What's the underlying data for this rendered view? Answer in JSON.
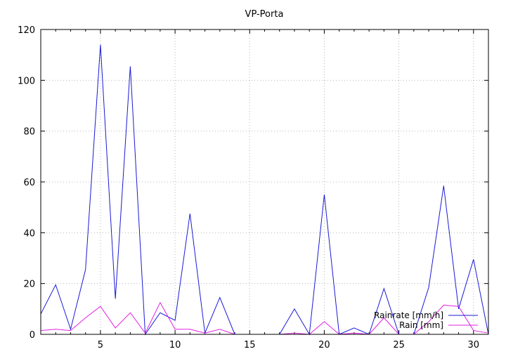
{
  "chart_data": {
    "type": "line",
    "title": "VP-Porta",
    "xlabel": "",
    "ylabel": "",
    "xlim": [
      1,
      31
    ],
    "ylim": [
      0,
      120
    ],
    "xticks": [
      5,
      10,
      15,
      20,
      25,
      30
    ],
    "yticks": [
      0,
      20,
      40,
      60,
      80,
      100,
      120
    ],
    "grid": true,
    "legend_position": "bottom-right",
    "x": [
      1,
      2,
      3,
      4,
      5,
      6,
      7,
      8,
      9,
      10,
      11,
      12,
      13,
      14,
      15,
      16,
      17,
      18,
      19,
      20,
      21,
      22,
      23,
      24,
      25,
      26,
      27,
      28,
      29,
      30,
      31
    ],
    "series": [
      {
        "name": "Rainrate [mm/h]",
        "color": "#1a1ad6",
        "values": [
          8,
          19.5,
          2,
          25.5,
          114,
          14,
          105.5,
          0,
          8.5,
          5.5,
          47.5,
          0.5,
          14.5,
          0,
          0,
          0,
          0,
          10,
          0,
          55,
          0,
          2.5,
          0,
          18,
          0,
          0,
          18.5,
          58.5,
          10,
          29.5,
          0
        ]
      },
      {
        "name": "Rain [mm]",
        "color": "#e020e0",
        "values": [
          1.5,
          2,
          1.5,
          6.5,
          11,
          2.5,
          8.5,
          0.5,
          12.5,
          2,
          2,
          0.5,
          2,
          0,
          0,
          0,
          0,
          0.5,
          0,
          5,
          0,
          0.5,
          0,
          6.5,
          0,
          0,
          5,
          11.5,
          11,
          1.5,
          0.5
        ]
      }
    ]
  }
}
